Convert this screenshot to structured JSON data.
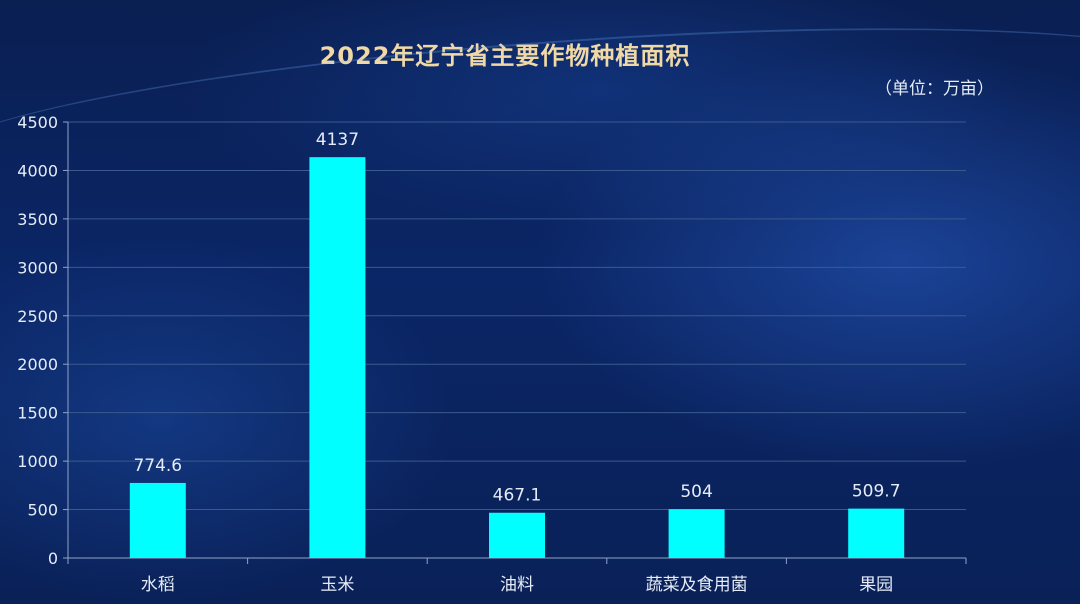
{
  "chart_data": {
    "type": "bar",
    "title": "2022年辽宁省主要作物种植面积",
    "unit": "（单位：万亩）",
    "categories": [
      "水稻",
      "玉米",
      "油料",
      "蔬菜及食用菌",
      "果园"
    ],
    "values": [
      774.6,
      4137,
      467.1,
      504,
      509.7
    ],
    "value_labels": [
      "774.6",
      "4137",
      "467.1",
      "504",
      "509.7"
    ],
    "ylim": [
      0,
      4500
    ],
    "yticks": [
      0,
      500,
      1000,
      1500,
      2000,
      2500,
      3000,
      3500,
      4000,
      4500
    ],
    "grid": true,
    "legend": "none"
  },
  "colors": {
    "bar": "#00ffff",
    "grid": "#3a5a8f",
    "axis": "#8fa3c8",
    "title": "#f1d9a6",
    "text": "#e6ecf7"
  }
}
